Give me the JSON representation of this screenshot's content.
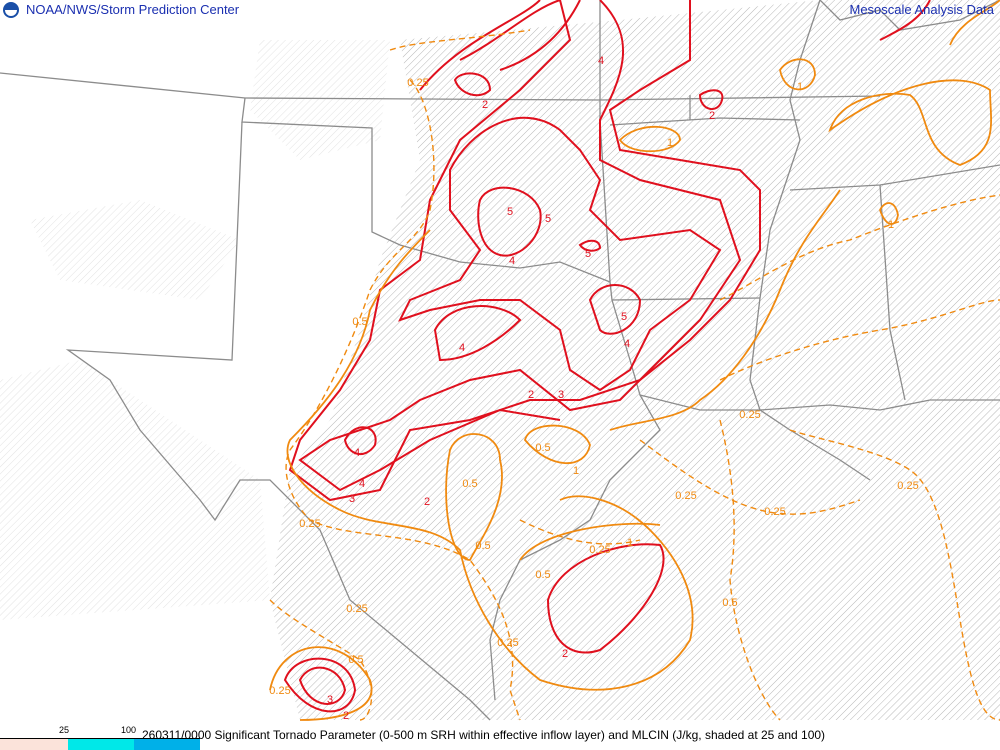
{
  "header": {
    "org_title": "NOAA/NWS/Storm Prediction Center",
    "product_title": "Mesoscale Analysis Data",
    "logo_icon": "noaa-logo-icon"
  },
  "footer": {
    "description": "260311/0000 Significant Tornado Parameter (0-500 m SRH within effective inflow layer) and MLCIN (J/kg, shaded at 25 and 100)",
    "legend": {
      "ticks": [
        "25",
        "100"
      ],
      "colors": [
        "#fbe3da",
        "#00e8e8",
        "#00b0e8"
      ]
    }
  },
  "map": {
    "colors": {
      "stp_high": "#e0101e",
      "stp_low": "#f08a10",
      "borders": "#8c8c8c",
      "hatch": "#b8b8b8"
    },
    "contour_labels": {
      "red": [
        "2",
        "4",
        "5",
        "5",
        "4",
        "5",
        "5",
        "4",
        "4",
        "2",
        "3",
        "4",
        "4",
        "3",
        "2",
        "2",
        "2",
        "3",
        "2"
      ],
      "orange": [
        "0.25",
        "1",
        "1",
        "1",
        "1",
        "0.25",
        "0.5",
        "1",
        "0.5",
        "0.5",
        "0.25",
        "0.25",
        "0.25",
        "0.5",
        "0.25",
        "0.25",
        "0.5",
        "0.25",
        "0.25",
        "0.5",
        "0.25",
        "0.5"
      ]
    }
  }
}
